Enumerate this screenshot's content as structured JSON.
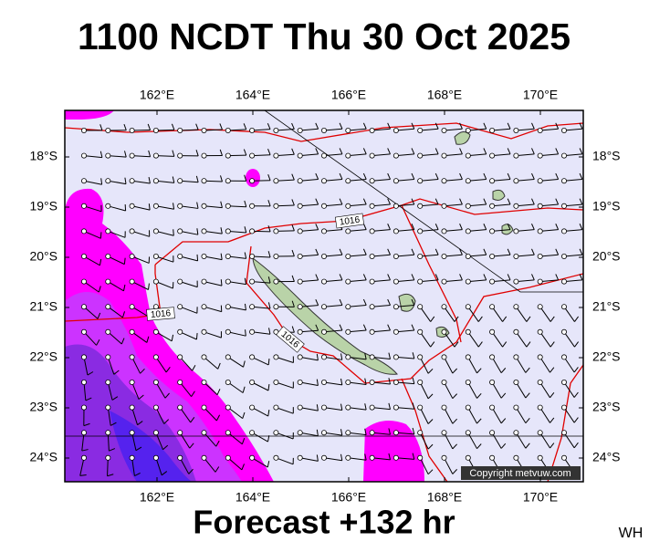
{
  "title": "1100 NCDT Thu 30 Oct 2025",
  "footer": "Forecast +132 hr",
  "corner_code": "WH",
  "copyright": "Copyright metvuw.com",
  "map": {
    "longitude_labels": [
      "162°E",
      "164°E",
      "166°E",
      "168°E",
      "170°E"
    ],
    "latitude_labels": [
      "18°S",
      "19°S",
      "20°S",
      "21°S",
      "22°S",
      "23°S",
      "24°S"
    ],
    "isobar_labels": [
      "1016",
      "1016",
      "1016"
    ]
  }
}
